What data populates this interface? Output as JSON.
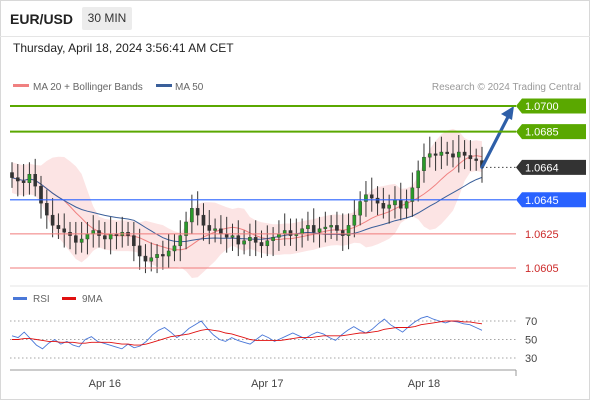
{
  "header": {
    "symbol": "EUR/USD",
    "timeframe": "30 MIN",
    "datetime": "Thursday, April 18, 2024 3:56:41 AM CET",
    "credit": "Research © 2024 Trading Central"
  },
  "colors": {
    "bollinger": "#f08080",
    "ma50": "#3a5f9a",
    "resistance": "#5aa800",
    "pivot": "#2962ff",
    "support": "#f07b7b",
    "last_price": "#333333",
    "arrow": "#2e5fa8",
    "rsi": "#4a78d8",
    "rsi_ma": "#e01010"
  },
  "chart_data": [
    {
      "type": "candlestick",
      "instrument": "EUR/USD",
      "timeframe": "30 MIN",
      "legend": [
        {
          "name": "MA 20 + Bollinger Bands",
          "color": "#f08080"
        },
        {
          "name": "MA 50",
          "color": "#3a5f9a"
        }
      ],
      "x_ticks": [
        "Apr 16",
        "Apr 17",
        "Apr 18"
      ],
      "y_range": [
        1.0595,
        1.0715
      ],
      "levels": [
        {
          "label": "1.0700",
          "value": 1.07,
          "kind": "resistance",
          "style": "filled-green"
        },
        {
          "label": "1.0685",
          "value": 1.0685,
          "kind": "resistance",
          "style": "filled-green"
        },
        {
          "label": "1.0664",
          "value": 1.0664,
          "kind": "last",
          "style": "filled-dark"
        },
        {
          "label": "1.0645",
          "value": 1.0645,
          "kind": "pivot",
          "style": "filled-blue"
        },
        {
          "label": "1.0625",
          "value": 1.0625,
          "kind": "support",
          "style": "text-red"
        },
        {
          "label": "1.0605",
          "value": 1.0605,
          "kind": "support",
          "style": "text-red"
        }
      ],
      "arrow": {
        "from": 1.0664,
        "to": 1.07,
        "direction": "up"
      },
      "close_series": [
        1.0658,
        1.0656,
        1.0655,
        1.066,
        1.0653,
        1.0643,
        1.0636,
        1.063,
        1.0628,
        1.0626,
        1.0624,
        1.062,
        1.0622,
        1.0625,
        1.0627,
        1.0624,
        1.0622,
        1.0625,
        1.0624,
        1.0626,
        1.0624,
        1.0618,
        1.0612,
        1.0609,
        1.0611,
        1.0613,
        1.0612,
        1.0615,
        1.0618,
        1.0624,
        1.0632,
        1.064,
        1.0636,
        1.063,
        1.0627,
        1.0628,
        1.0625,
        1.0623,
        1.0624,
        1.0619,
        1.0621,
        1.0623,
        1.062,
        1.0618,
        1.0621,
        1.0623,
        1.0625,
        1.0627,
        1.0624,
        1.0625,
        1.0628,
        1.063,
        1.0626,
        1.0628,
        1.0629,
        1.063,
        1.0627,
        1.0624,
        1.063,
        1.0636,
        1.0644,
        1.0648,
        1.0646,
        1.0643,
        1.064,
        1.0642,
        1.0645,
        1.064,
        1.0644,
        1.0652,
        1.0662,
        1.067,
        1.0672,
        1.0671,
        1.0673,
        1.0672,
        1.067,
        1.0673,
        1.0671,
        1.0669,
        1.0668,
        1.0664
      ],
      "x_tick_index": [
        16,
        44,
        71
      ]
    },
    {
      "type": "line",
      "indicator": "RSI",
      "legend": [
        {
          "name": "RSI",
          "color": "#4a78d8"
        },
        {
          "name": "9MA",
          "color": "#e01010"
        }
      ],
      "y_ticks": [
        70,
        50,
        30
      ],
      "y_range": [
        18,
        82
      ],
      "series": [
        {
          "name": "RSI",
          "values": [
            54,
            52,
            58,
            51,
            44,
            40,
            46,
            50,
            45,
            48,
            44,
            42,
            50,
            53,
            48,
            46,
            44,
            42,
            40,
            45,
            41,
            43,
            48,
            55,
            60,
            63,
            58,
            52,
            56,
            62,
            66,
            70,
            62,
            55,
            50,
            48,
            52,
            49,
            47,
            45,
            50,
            55,
            52,
            48,
            51,
            54,
            57,
            54,
            51,
            55,
            58,
            56,
            52,
            49,
            55,
            60,
            64,
            60,
            57,
            61,
            67,
            72,
            66,
            62,
            58,
            64,
            69,
            73,
            75,
            72,
            70,
            68,
            70,
            69,
            67,
            66,
            63,
            60
          ]
        },
        {
          "name": "9MA",
          "values": [
            50,
            50,
            51,
            51,
            50,
            49,
            48,
            48,
            47,
            47,
            47,
            46,
            46,
            47,
            47,
            47,
            47,
            46,
            45,
            45,
            44,
            44,
            45,
            47,
            49,
            51,
            53,
            54,
            55,
            56,
            58,
            60,
            61,
            60,
            59,
            57,
            56,
            54,
            52,
            50,
            49,
            49,
            49,
            49,
            49,
            50,
            51,
            52,
            52,
            52,
            53,
            54,
            54,
            54,
            54,
            55,
            56,
            57,
            57,
            58,
            59,
            61,
            62,
            63,
            63,
            63,
            64,
            66,
            67,
            68,
            69,
            70,
            70,
            70,
            69,
            69,
            68,
            67
          ]
        }
      ]
    }
  ]
}
